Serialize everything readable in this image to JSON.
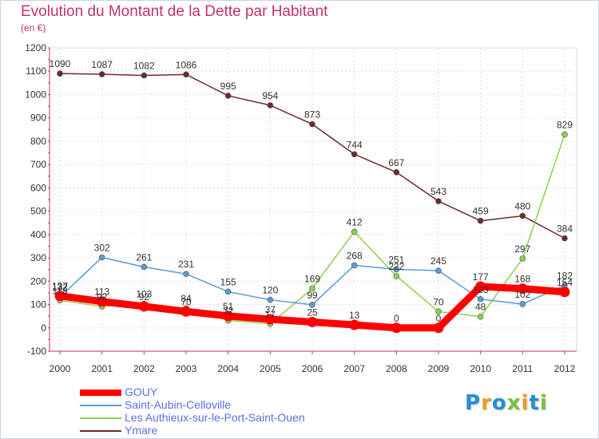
{
  "title": "Evolution du Montant de la Dette par Habitant",
  "subtitle": "(en €)",
  "logo": {
    "text": "Proxiti",
    "letters": [
      "P",
      "r",
      "o",
      "x",
      "i",
      "t",
      "i"
    ],
    "colors": [
      "#1f8fdb",
      "#f29a1d",
      "#1f8fdb",
      "#7bc143",
      "#f29a1d",
      "#1f8fdb",
      "#7bc143"
    ]
  },
  "chart_data": {
    "type": "line",
    "title": "Evolution du Montant de la Dette par Habitant",
    "subtitle": "(en €)",
    "x": [
      "2000",
      "2001",
      "2002",
      "2003",
      "2004",
      "2005",
      "2006",
      "2007",
      "2008",
      "2009",
      "2010",
      "2011",
      "2012"
    ],
    "ylim": [
      -100,
      1200
    ],
    "yticks": [
      "-100",
      "0",
      "100",
      "200",
      "300",
      "400",
      "500",
      "600",
      "700",
      "800",
      "900",
      "1000",
      "1100",
      "1200"
    ],
    "grid": true,
    "legend_position": "bottom-left",
    "series": [
      {
        "name": "GOUY",
        "color": "#ff0000",
        "width": 9,
        "values": [
          137,
          113,
          92,
          70,
          51,
          37,
          25,
          13,
          0,
          0,
          177,
          168,
          154
        ],
        "labels": [
          "137",
          "113",
          "92",
          "70",
          "51",
          "37",
          "25",
          "13",
          "0",
          "0",
          "177",
          "168",
          "154"
        ]
      },
      {
        "name": "Saint-Aubin-Celloville",
        "color": "#5b9bd5",
        "width": 1.5,
        "values": [
          132,
          302,
          261,
          231,
          155,
          120,
          99,
          268,
          251,
          245,
          123,
          102,
          182
        ],
        "labels": [
          "132",
          "302",
          "261",
          "231",
          "155",
          "120",
          "99",
          "268",
          "251",
          "245",
          "123",
          "102",
          "182"
        ]
      },
      {
        "name": "Les Authieux-sur-le-Port-Saint-Ouen",
        "color": "#8ed04a",
        "width": 1.5,
        "values": [
          118,
          92,
          103,
          84,
          32,
          17,
          169,
          412,
          222,
          70,
          48,
          297,
          829
        ],
        "labels": [
          "118",
          "92",
          "103",
          "84",
          "32",
          "17",
          "169",
          "412",
          "222",
          "70",
          "48",
          "297",
          "829"
        ]
      },
      {
        "name": "Ymare",
        "color": "#6e2a2a",
        "width": 1.5,
        "values": [
          1090,
          1087,
          1082,
          1086,
          995,
          954,
          873,
          744,
          667,
          543,
          459,
          480,
          384
        ],
        "labels": [
          "1090",
          "1087",
          "1082",
          "1086",
          "995",
          "954",
          "873",
          "744",
          "667",
          "543",
          "459",
          "480",
          "384"
        ]
      }
    ]
  }
}
